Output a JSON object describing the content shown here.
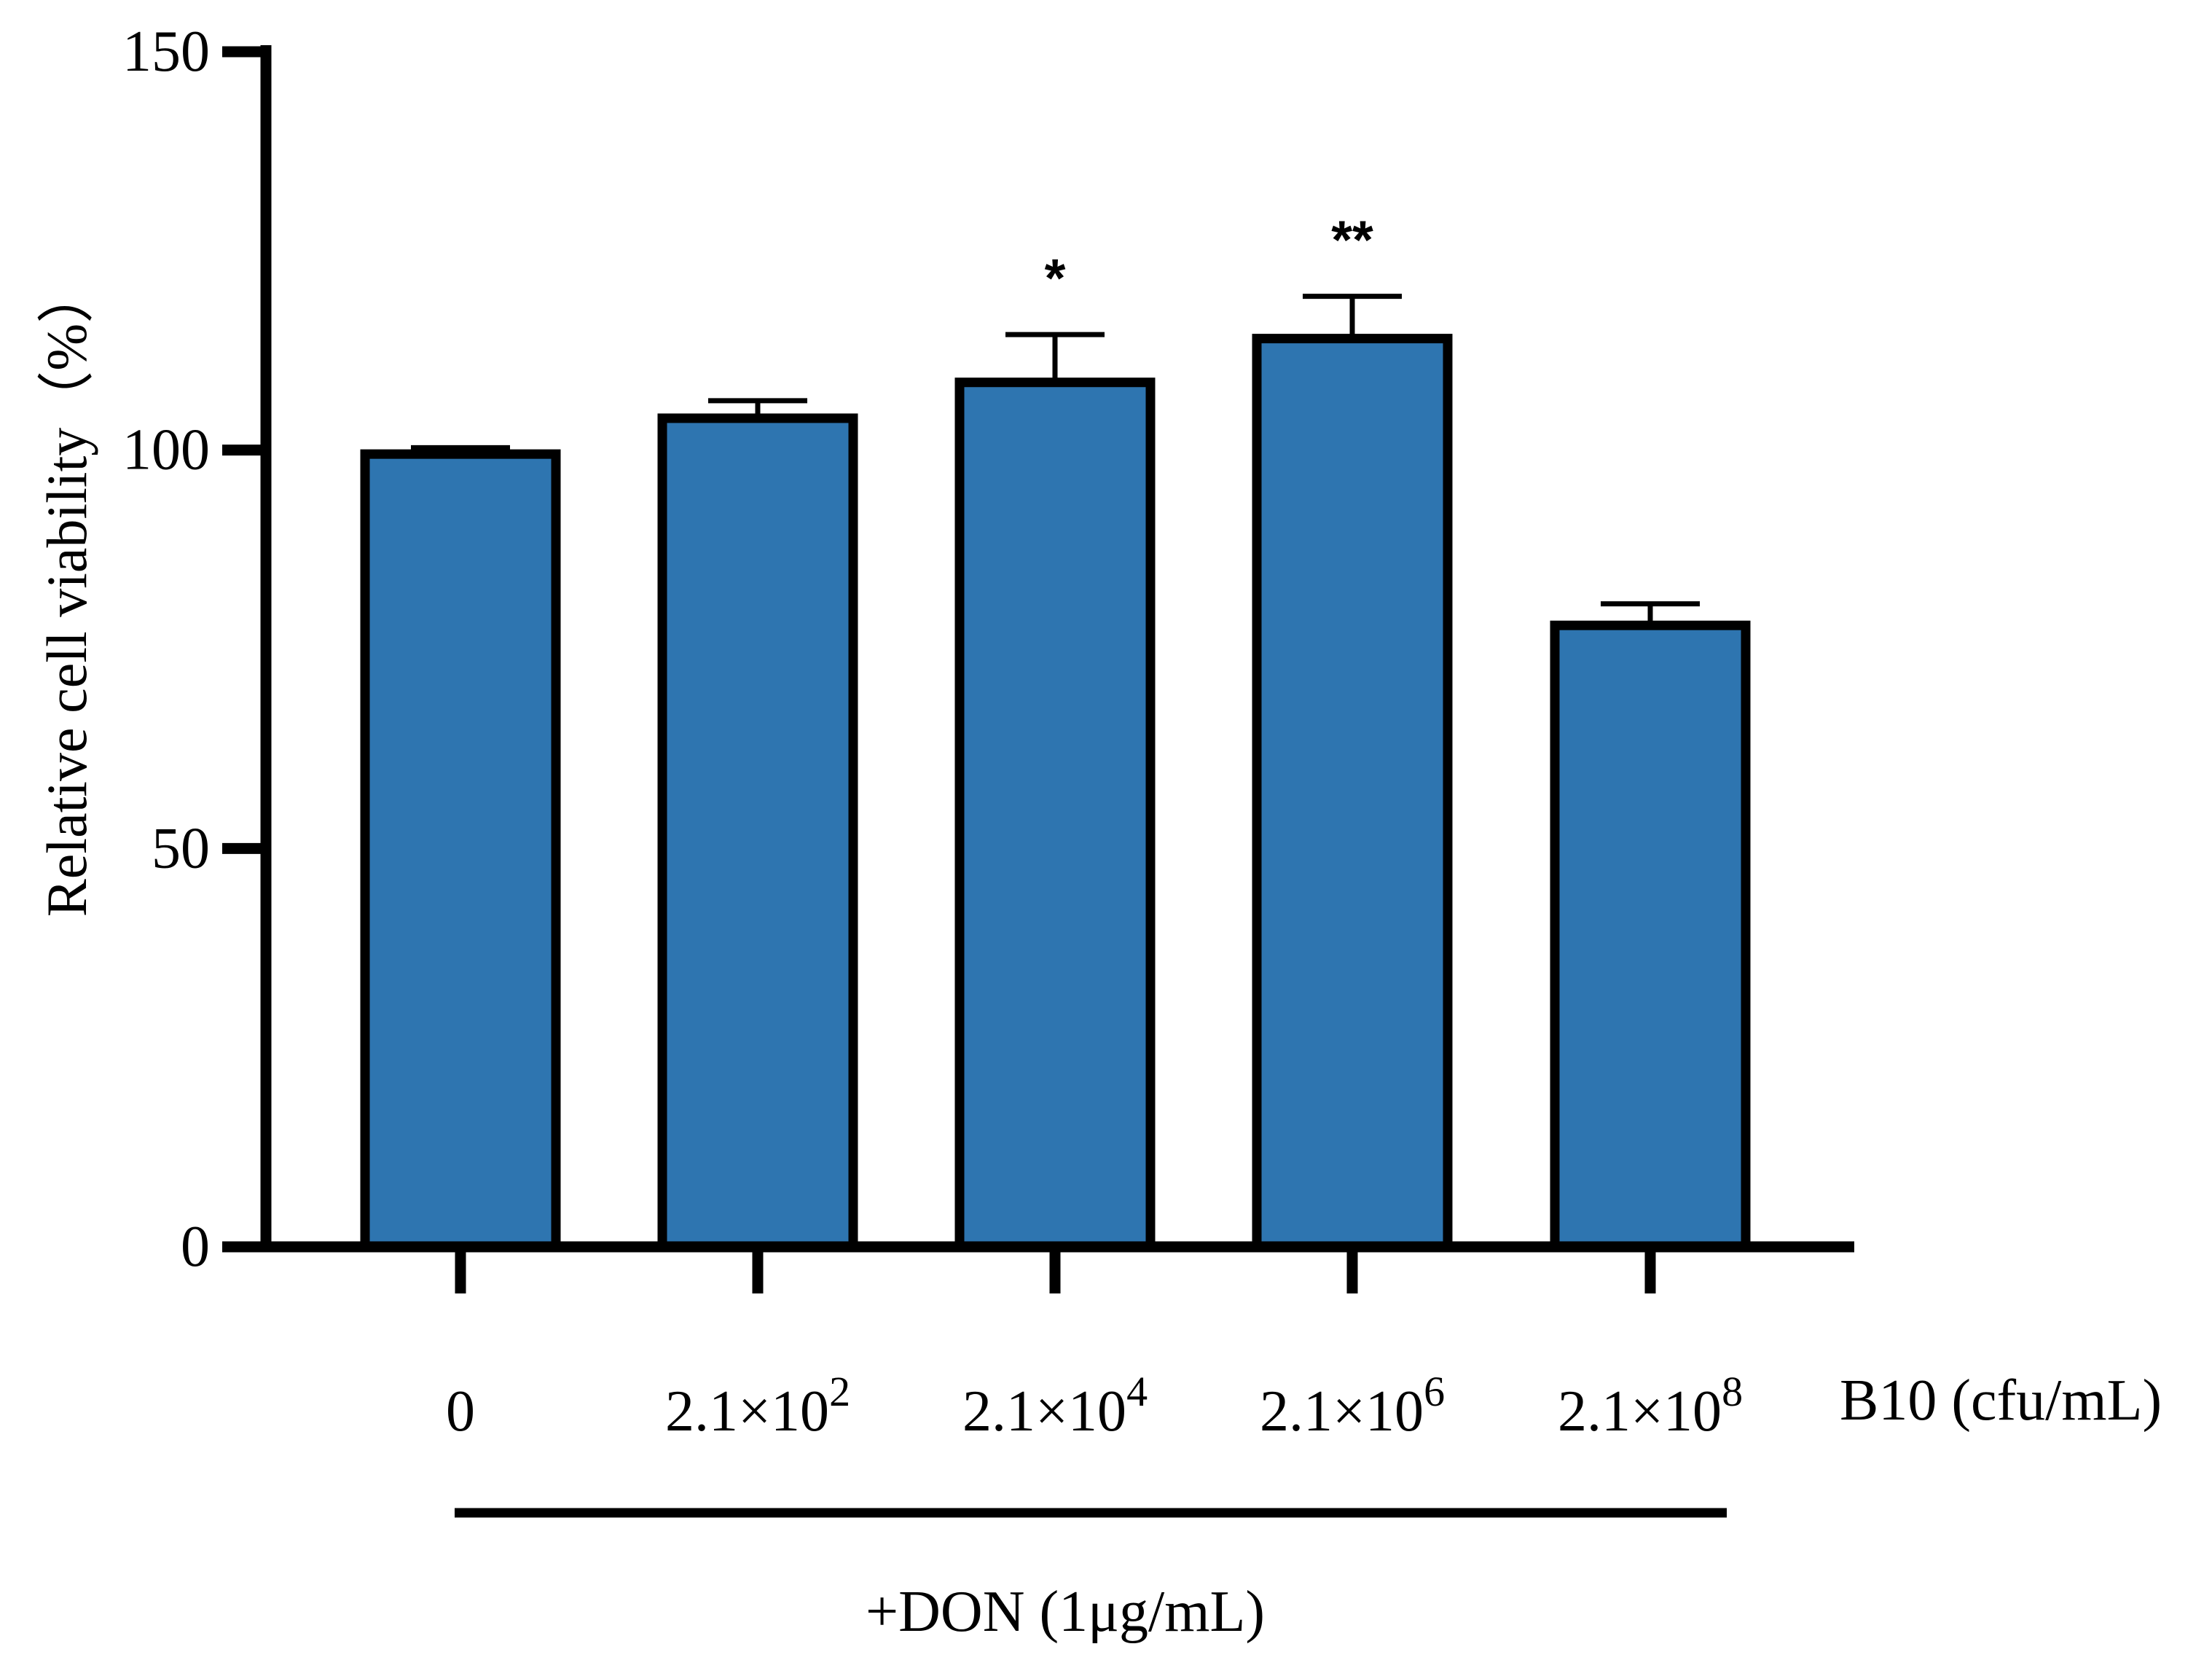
{
  "chart_data": {
    "type": "bar",
    "ylabel": "Relative cell viability（%）",
    "ylim": [
      0,
      150
    ],
    "yticks": [
      0,
      50,
      100,
      150
    ],
    "grid": false,
    "bar_color": "#2e75b0",
    "edge_color": "#000000",
    "categories": [
      {
        "base": "0",
        "exp": ""
      },
      {
        "base": "2.1×10",
        "exp": "2"
      },
      {
        "base": "2.1×10",
        "exp": "4"
      },
      {
        "base": "2.1×10",
        "exp": "6"
      },
      {
        "base": "2.1×10",
        "exp": "8"
      }
    ],
    "values": [
      99.5,
      104,
      108.5,
      114,
      78
    ],
    "errors": [
      0.8,
      2.2,
      6,
      5.3,
      2.7
    ],
    "significance": [
      "",
      "",
      "*",
      "**",
      ""
    ],
    "x_unit_label": "B10 (cfu/mL)",
    "treatment_label": "+DON (1μg/mL)"
  }
}
